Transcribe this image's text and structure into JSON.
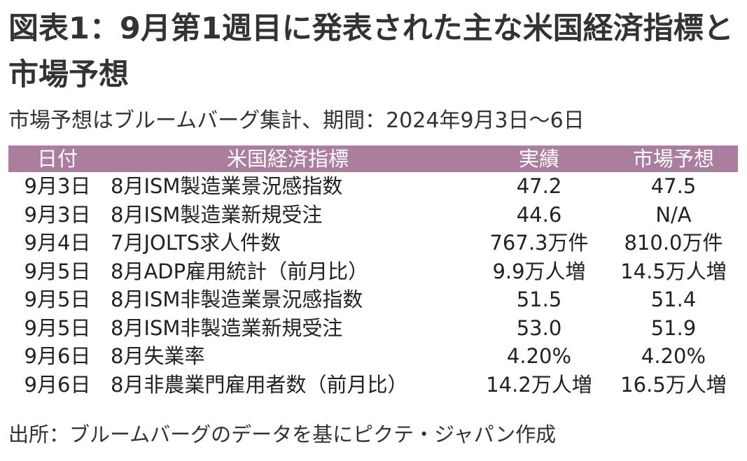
{
  "title": "図表1：9月第1週目に発表された主な米国経済指標と市場予想",
  "subtitle": "市場予想はブルームバーグ集計、期間：2024年9月3日～6日",
  "table": {
    "headers": {
      "date": "日付",
      "indicator": "米国経済指標",
      "actual": "実績",
      "forecast": "市場予想"
    },
    "rows": [
      {
        "date": "9月3日",
        "indicator": "8月ISM製造業景況感指数",
        "actual": "47.2",
        "forecast": "47.5"
      },
      {
        "date": "9月3日",
        "indicator": "8月ISM製造業新規受注",
        "actual": "44.6",
        "forecast": "N/A"
      },
      {
        "date": "9月4日",
        "indicator": "7月JOLTS求人件数",
        "actual": "767.3万件",
        "forecast": "810.0万件"
      },
      {
        "date": "9月5日",
        "indicator": "8月ADP雇用統計（前月比）",
        "actual": "9.9万人増",
        "forecast": "14.5万人増"
      },
      {
        "date": "9月5日",
        "indicator": "8月ISM非製造業景況感指数",
        "actual": "51.5",
        "forecast": "51.4"
      },
      {
        "date": "9月5日",
        "indicator": "8月ISM非製造業新規受注",
        "actual": "53.0",
        "forecast": "51.9"
      },
      {
        "date": "9月6日",
        "indicator": "8月失業率",
        "actual": "4.20%",
        "forecast": "4.20%"
      },
      {
        "date": "9月6日",
        "indicator": "8月非農業門雇用者数（前月比）",
        "actual": "14.2万人増",
        "forecast": "16.5万人増"
      }
    ]
  },
  "source": "出所：ブルームバーグのデータを基にピクテ・ジャパン作成",
  "colors": {
    "header_bg": "#ab7d9f",
    "header_text": "#ffffff",
    "text": "#222222"
  }
}
